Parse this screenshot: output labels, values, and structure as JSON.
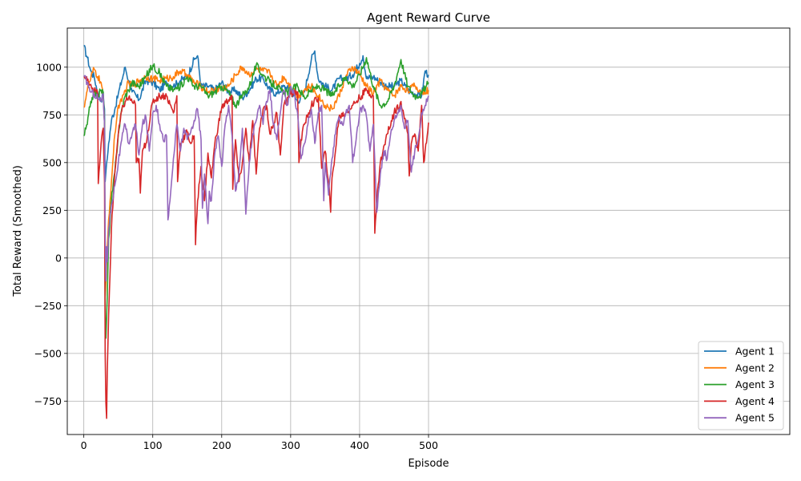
{
  "chart_data": {
    "type": "line",
    "title": "Agent Reward Curve",
    "xlabel": "Episode",
    "ylabel": "Total Reward (Smoothed)",
    "xlim": [
      -24,
      1024
    ],
    "ylim": [
      -925,
      1205
    ],
    "xticks": [
      0,
      100,
      200,
      300,
      400,
      500
    ],
    "yticks": [
      -750,
      -500,
      -250,
      0,
      250,
      500,
      750,
      1000
    ],
    "ytick_labels": [
      "−750",
      "−500",
      "−250",
      "0",
      "250",
      "500",
      "750",
      "1000"
    ],
    "grid": true,
    "legend_position": "lower-right",
    "series": [
      {
        "name": "Agent 1",
        "color": "#1f77b4",
        "x": [
          0,
          5,
          10,
          15,
          20,
          25,
          28,
          30,
          31,
          32,
          34,
          36,
          40,
          45,
          50,
          55,
          60,
          65,
          70,
          80,
          90,
          100,
          110,
          120,
          130,
          140,
          150,
          160,
          165,
          170,
          180,
          190,
          200,
          210,
          220,
          230,
          240,
          250,
          260,
          270,
          280,
          290,
          300,
          310,
          320,
          330,
          335,
          340,
          350,
          360,
          370,
          380,
          390,
          400,
          405,
          410,
          420,
          430,
          440,
          450,
          460,
          470,
          480,
          490,
          495,
          500
        ],
        "y": [
          1110,
          1050,
          980,
          950,
          870,
          820,
          870,
          780,
          400,
          450,
          520,
          600,
          720,
          780,
          860,
          930,
          1000,
          930,
          870,
          830,
          930,
          920,
          880,
          920,
          900,
          930,
          950,
          1040,
          1060,
          900,
          900,
          880,
          920,
          870,
          880,
          840,
          880,
          940,
          940,
          880,
          860,
          900,
          880,
          820,
          870,
          1040,
          1085,
          940,
          900,
          880,
          940,
          940,
          960,
          1020,
          1060,
          940,
          950,
          920,
          900,
          900,
          930,
          880,
          860,
          850,
          980,
          960
        ]
      },
      {
        "name": "Agent 2",
        "color": "#ff7f0e",
        "x": [
          0,
          5,
          10,
          15,
          20,
          25,
          28,
          30,
          31,
          32,
          34,
          36,
          40,
          45,
          50,
          55,
          60,
          65,
          70,
          80,
          90,
          100,
          110,
          120,
          130,
          140,
          150,
          160,
          170,
          180,
          190,
          200,
          210,
          220,
          230,
          240,
          250,
          260,
          270,
          280,
          290,
          300,
          310,
          320,
          330,
          340,
          350,
          360,
          370,
          380,
          390,
          400,
          410,
          420,
          430,
          440,
          450,
          460,
          470,
          480,
          490,
          500
        ],
        "y": [
          790,
          880,
          940,
          990,
          950,
          920,
          850,
          700,
          -200,
          -120,
          50,
          200,
          400,
          650,
          800,
          820,
          880,
          920,
          900,
          930,
          950,
          940,
          930,
          940,
          950,
          980,
          960,
          920,
          900,
          870,
          880,
          890,
          900,
          960,
          1000,
          960,
          990,
          980,
          970,
          900,
          950,
          900,
          850,
          880,
          900,
          850,
          800,
          780,
          850,
          950,
          1000,
          960,
          900,
          860,
          930,
          880,
          850,
          900,
          880,
          900,
          870,
          880
        ]
      },
      {
        "name": "Agent 3",
        "color": "#2ca02c",
        "x": [
          0,
          5,
          10,
          15,
          20,
          25,
          28,
          30,
          31,
          32,
          34,
          36,
          40,
          45,
          50,
          55,
          60,
          65,
          70,
          80,
          90,
          100,
          110,
          120,
          130,
          140,
          150,
          160,
          170,
          180,
          190,
          200,
          210,
          220,
          230,
          240,
          250,
          260,
          270,
          280,
          290,
          300,
          310,
          320,
          330,
          340,
          350,
          360,
          370,
          380,
          390,
          400,
          410,
          420,
          430,
          440,
          450,
          460,
          470,
          480,
          490,
          500
        ],
        "y": [
          640,
          700,
          820,
          870,
          850,
          880,
          870,
          700,
          -300,
          -420,
          -200,
          100,
          300,
          450,
          650,
          780,
          850,
          880,
          920,
          900,
          950,
          1010,
          970,
          900,
          880,
          900,
          950,
          900,
          900,
          850,
          870,
          900,
          870,
          800,
          850,
          900,
          1010,
          960,
          920,
          900,
          860,
          880,
          900,
          840,
          880,
          900,
          880,
          850,
          900,
          950,
          900,
          960,
          1050,
          900,
          800,
          820,
          900,
          1040,
          900,
          850,
          860,
          920
        ]
      },
      {
        "name": "Agent 4",
        "color": "#d62728",
        "x": [
          0,
          5,
          10,
          15,
          20,
          21,
          22,
          25,
          28,
          30,
          31,
          32,
          33,
          34,
          36,
          40,
          45,
          50,
          55,
          60,
          65,
          70,
          75,
          76,
          80,
          82,
          85,
          90,
          100,
          110,
          120,
          130,
          135,
          136,
          140,
          150,
          155,
          160,
          162,
          165,
          170,
          175,
          180,
          185,
          190,
          200,
          210,
          215,
          216,
          220,
          225,
          230,
          235,
          240,
          245,
          250,
          255,
          260,
          265,
          270,
          275,
          280,
          285,
          290,
          300,
          310,
          312,
          315,
          320,
          330,
          340,
          345,
          350,
          355,
          358,
          360,
          365,
          370,
          380,
          390,
          400,
          410,
          420,
          422,
          425,
          430,
          440,
          450,
          460,
          465,
          470,
          472,
          475,
          480,
          485,
          490,
          493,
          495,
          500
        ],
        "y": [
          950,
          930,
          910,
          880,
          860,
          390,
          450,
          600,
          680,
          400,
          -500,
          -760,
          -840,
          -600,
          -300,
          150,
          450,
          650,
          770,
          820,
          840,
          820,
          800,
          500,
          520,
          340,
          560,
          600,
          820,
          850,
          850,
          760,
          850,
          400,
          600,
          660,
          600,
          640,
          70,
          300,
          480,
          300,
          550,
          420,
          600,
          790,
          830,
          850,
          360,
          620,
          400,
          500,
          680,
          500,
          720,
          440,
          680,
          780,
          800,
          650,
          700,
          760,
          540,
          800,
          860,
          870,
          500,
          620,
          700,
          800,
          840,
          470,
          560,
          400,
          240,
          420,
          560,
          740,
          760,
          800,
          840,
          880,
          850,
          130,
          300,
          500,
          650,
          760,
          820,
          730,
          650,
          430,
          600,
          650,
          560,
          800,
          500,
          560,
          710
        ]
      },
      {
        "name": "Agent 5",
        "color": "#9467bd",
        "x": [
          0,
          5,
          10,
          15,
          20,
          25,
          28,
          30,
          31,
          32,
          33,
          34,
          36,
          40,
          45,
          50,
          55,
          60,
          65,
          70,
          75,
          80,
          85,
          90,
          95,
          100,
          105,
          110,
          115,
          120,
          122,
          125,
          130,
          135,
          140,
          145,
          150,
          155,
          160,
          165,
          170,
          172,
          175,
          180,
          182,
          185,
          190,
          195,
          200,
          205,
          210,
          215,
          220,
          225,
          230,
          235,
          240,
          245,
          250,
          255,
          260,
          265,
          270,
          275,
          280,
          285,
          290,
          295,
          300,
          305,
          310,
          315,
          320,
          325,
          330,
          335,
          340,
          345,
          348,
          350,
          355,
          360,
          365,
          370,
          375,
          380,
          385,
          390,
          395,
          400,
          405,
          410,
          415,
          420,
          425,
          430,
          435,
          440,
          445,
          450,
          455,
          460,
          465,
          470,
          475,
          480,
          485,
          490,
          495,
          500
        ],
        "y": [
          950,
          920,
          870,
          860,
          840,
          820,
          860,
          700,
          100,
          -120,
          60,
          -20,
          150,
          280,
          380,
          500,
          620,
          700,
          600,
          650,
          700,
          540,
          700,
          740,
          560,
          760,
          800,
          700,
          620,
          640,
          200,
          300,
          520,
          700,
          560,
          680,
          620,
          660,
          720,
          780,
          620,
          260,
          440,
          180,
          350,
          300,
          550,
          640,
          480,
          700,
          800,
          640,
          350,
          450,
          680,
          230,
          500,
          650,
          720,
          800,
          700,
          820,
          880,
          700,
          620,
          760,
          880,
          800,
          900,
          860,
          760,
          520,
          600,
          700,
          780,
          600,
          760,
          800,
          300,
          500,
          330,
          520,
          650,
          740,
          700,
          760,
          800,
          500,
          620,
          760,
          800,
          740,
          560,
          700,
          240,
          440,
          560,
          520,
          650,
          720,
          760,
          800,
          680,
          720,
          450,
          560,
          620,
          760,
          800,
          850
        ]
      }
    ]
  }
}
